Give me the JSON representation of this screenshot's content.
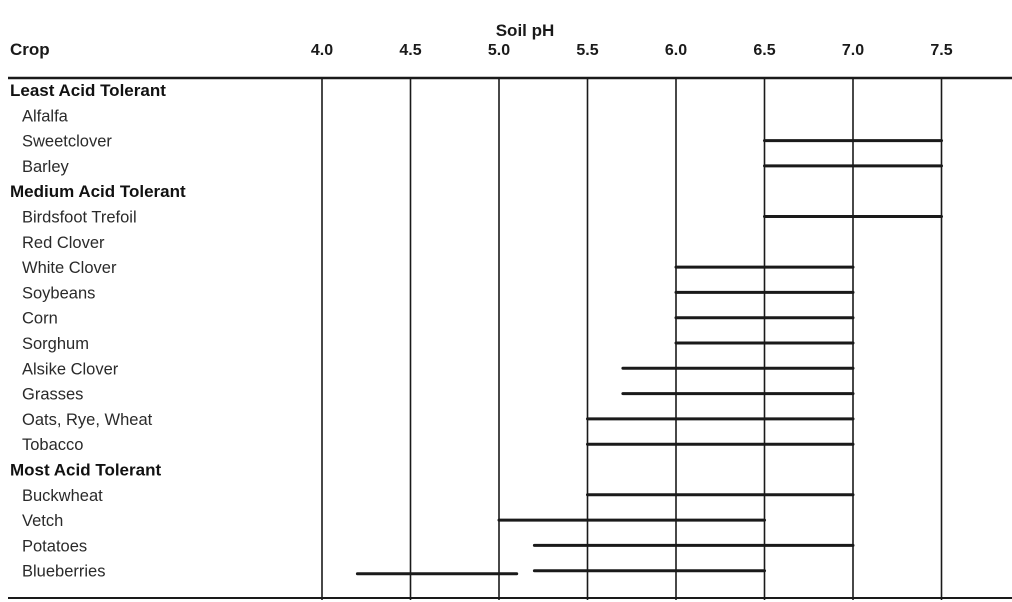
{
  "chart_data": {
    "type": "range-bar",
    "title": "",
    "xlabel": "Soil pH",
    "ylabel": "Crop",
    "xlim": [
      4.0,
      7.5
    ],
    "ticks": [
      "4.0",
      "4.5",
      "5.0",
      "5.5",
      "6.0",
      "6.5",
      "7.0",
      "7.5"
    ],
    "grid": "vertical",
    "groups": [
      {
        "name": "Least Acid Tolerant",
        "crops": [
          {
            "name": "Alfalfa",
            "range": null
          },
          {
            "name": "Sweetclover",
            "range": [
              6.5,
              7.5
            ]
          },
          {
            "name": "Barley",
            "range": [
              6.5,
              7.5
            ]
          }
        ]
      },
      {
        "name": "Medium Acid Tolerant",
        "crops": [
          {
            "name": "Birdsfoot Trefoil",
            "range": [
              6.5,
              7.5
            ]
          },
          {
            "name": "Red Clover",
            "range": null
          },
          {
            "name": "White Clover",
            "range": [
              6.0,
              7.0
            ]
          },
          {
            "name": "Soybeans",
            "range": [
              6.0,
              7.0
            ]
          },
          {
            "name": "Corn",
            "range": [
              6.0,
              7.0
            ]
          },
          {
            "name": "Sorghum",
            "range": [
              6.0,
              7.0
            ]
          },
          {
            "name": "Alsike Clover",
            "range": [
              5.7,
              7.0
            ]
          },
          {
            "name": "Grasses",
            "range": [
              5.7,
              7.0
            ]
          },
          {
            "name": "Oats, Rye, Wheat",
            "range": [
              5.5,
              7.0
            ]
          },
          {
            "name": "Tobacco",
            "range": [
              5.5,
              7.0
            ]
          }
        ]
      },
      {
        "name": "Most Acid Tolerant",
        "crops": [
          {
            "name": "Buckwheat",
            "range": [
              5.5,
              7.0
            ]
          },
          {
            "name": "Vetch",
            "range": [
              5.0,
              6.5
            ]
          },
          {
            "name": "Potatoes",
            "range": [
              5.2,
              7.0
            ]
          },
          {
            "name": "Blueberries",
            "range": [
              5.2,
              6.5
            ]
          }
        ]
      }
    ],
    "extra_bars": [
      {
        "range": [
          4.2,
          5.1
        ]
      }
    ]
  },
  "colors": {
    "bar": "#1a1a1a",
    "grid": "#1a1a1a",
    "text": "#1a1a1a"
  }
}
